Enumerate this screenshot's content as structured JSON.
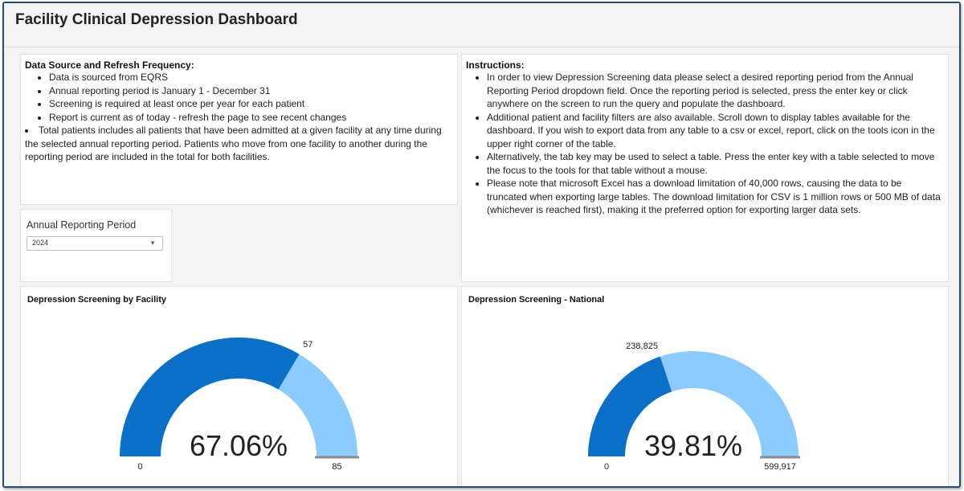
{
  "header": {
    "title": "Facility Clinical Depression Dashboard"
  },
  "data_source": {
    "heading": "Data Source and Refresh Frequency:",
    "items": [
      "Data is sourced from EQRS",
      "Annual reporting period is January 1 - December 31",
      "Screening is required at least once per year for each patient",
      "Report is current as of today - refresh the page to see recent changes",
      "Total patients includes all patients that have been admitted at a given facility at any time during the selected annual reporting period. Patients who move from one facility to another during the reporting period are included in the total for both facilities."
    ]
  },
  "instructions": {
    "heading": "Instructions:",
    "items": [
      "In order to view Depression Screening data please select a desired reporting period from the Annual Reporting Period dropdown field. Once the reporting period is selected, press the enter key or click anywhere on the screen to run the query and populate the dashboard.",
      "Additional patient and facility filters are also available. Scroll down to display tables available for the dashboard.  If you wish to export data from any table to a csv or excel, report, click on the tools icon in the upper right corner of the table.",
      "Alternatively, the tab key may be used to select a table. Press the enter key with a table selected to move the focus to the tools for that table without a mouse.",
      "Please note that microsoft Excel has a download limitation of 40,000 rows, causing the data to be truncated when exporting large tables. The download limitation for CSV is 1 million rows or 500 MB of data (whichever is reached first), making it the preferred option for exporting larger data sets."
    ]
  },
  "filter": {
    "label": "Annual Reporting Period",
    "selected": "2024",
    "icon": "chevron-down-icon"
  },
  "gauges": [
    {
      "title": "Depression Screening by Facility",
      "percent_label": "67.06%",
      "value": 57,
      "max": 85,
      "min_label": "0",
      "max_label": "85",
      "value_label": "57"
    },
    {
      "title": "Depression Screening - National",
      "percent_label": "39.81%",
      "value": 238825,
      "max": 599917,
      "min_label": "0",
      "max_label": "599,917",
      "value_label": "238,825"
    }
  ],
  "colors": {
    "filled": "#0a6fc6",
    "remaining": "#8ccbff",
    "target": "#8c8c8c"
  }
}
